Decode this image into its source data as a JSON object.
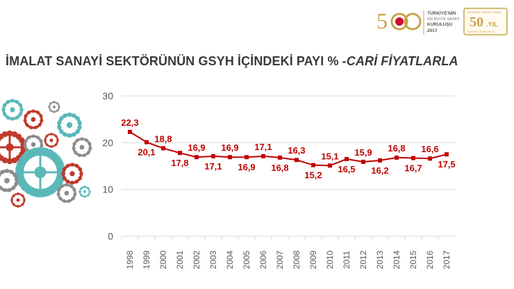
{
  "header": {
    "title_main": "İMALAT SANAYİ SEKTÖRÜNÜN GSYH İÇİNDEKİ PAYI % ",
    "title_italic": "-CARİ FİYATLARLA"
  },
  "logo": {
    "number_text": "5",
    "number_text_2": "0",
    "line1": "TÜRKİYE'NİN",
    "line2": "500 BÜYÜK SANAYİ",
    "line3": "KURULUŞU",
    "line4": "2017",
    "badge_number": "50",
    "badge_suffix": ".YIL",
    "badge_top": "İSTANBUL SANAYİ ODASI",
    "badge_bottom": "SANAYİ ODASI 50 YIL"
  },
  "colors": {
    "series": "#c00000",
    "axis_text": "#595959",
    "grid": "#d9d9d9",
    "logo_gold": "#c9a34a",
    "logo_red": "#c8102e",
    "gear_red": "#c0392b",
    "gear_teal": "#5ab8b8",
    "gear_grey": "#8c8c8c"
  },
  "chart_data": {
    "type": "line",
    "title": "İMALAT SANAYİ SEKTÖRÜNÜN GSYH İÇİNDEKİ PAYI % -CARİ FİYATLARLA",
    "x": [
      "1998",
      "1999",
      "2000",
      "2001",
      "2002",
      "2003",
      "2004",
      "2005",
      "2006",
      "2007",
      "2008",
      "2009",
      "2010",
      "2011",
      "2012",
      "2013",
      "2014",
      "2015",
      "2016",
      "2017"
    ],
    "series": [
      {
        "values": [
          22.3,
          20.1,
          18.8,
          17.8,
          16.9,
          17.1,
          16.9,
          16.9,
          17.1,
          16.8,
          16.3,
          15.2,
          15.1,
          16.5,
          15.9,
          16.2,
          16.8,
          16.7,
          16.6,
          17.5
        ]
      }
    ],
    "labels": [
      "22,3",
      "20,1",
      "18,8",
      "17,8",
      "16,9",
      "17,1",
      "16,9",
      "16,9",
      "17,1",
      "16,8",
      "16,3",
      "15,2",
      "15,1",
      "16,5",
      "15,9",
      "16,2",
      "16,8",
      "16,7",
      "16,6",
      "17,5"
    ],
    "label_positions": [
      "above",
      "below",
      "above",
      "below",
      "above",
      "below",
      "above",
      "below",
      "above",
      "below",
      "above",
      "below",
      "above",
      "below",
      "above",
      "below",
      "above",
      "below",
      "above",
      "below"
    ],
    "yticks": [
      "0",
      "10",
      "20",
      "30"
    ],
    "ylim": [
      0,
      30
    ],
    "grid": true,
    "legend": "none",
    "marker": "square"
  }
}
